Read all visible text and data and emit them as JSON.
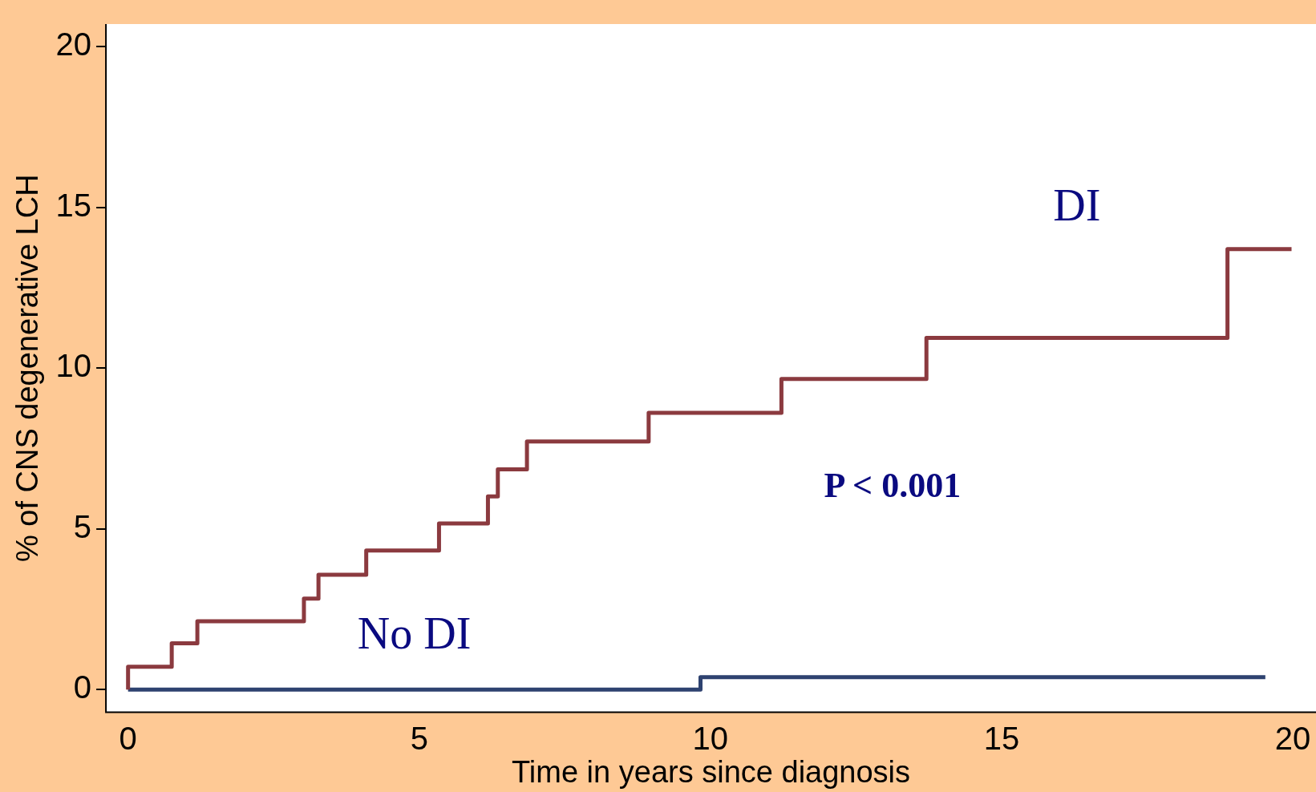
{
  "chart_data": {
    "type": "step",
    "xlabel": "Time in years since diagnosis",
    "ylabel": "% of CNS degenerative LCH",
    "xlim": [
      -0.38,
      20.4
    ],
    "xticks": [
      0,
      5,
      10,
      15,
      20
    ],
    "ylim": [
      -0.7,
      20.7
    ],
    "yticks": [
      0,
      5,
      10,
      15,
      20
    ],
    "grid": false,
    "legend": false,
    "series": [
      {
        "name": "DI",
        "color": "#8b3a3f",
        "x": [
          0,
          0,
          0.75,
          1.19,
          3.02,
          3.27,
          4.09,
          5.34,
          6.18,
          6.35,
          6.85,
          8.94,
          11.22,
          13.71,
          18.88,
          19.98
        ],
        "values": [
          0,
          0.71,
          1.44,
          2.13,
          2.83,
          3.57,
          4.33,
          5.17,
          6.01,
          6.85,
          7.72,
          8.61,
          9.66,
          10.94,
          13.7,
          13.7
        ]
      },
      {
        "name": "No DI",
        "color": "#2e4270",
        "x": [
          0,
          9.83,
          19.53
        ],
        "values": [
          0,
          0.39,
          0.39
        ]
      }
    ],
    "annotations": [
      "P < 0.001"
    ]
  }
}
